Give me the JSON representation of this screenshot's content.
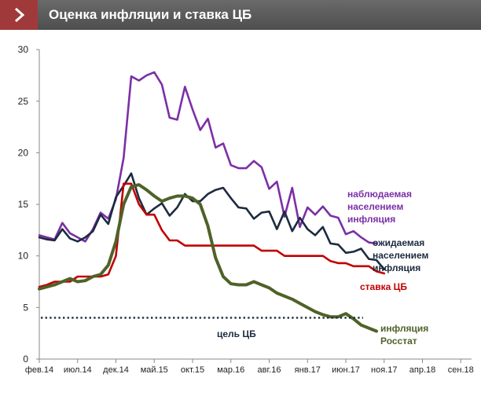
{
  "header": {
    "title": "Оценка инфляции и ставка ЦБ"
  },
  "colors": {
    "observed": "#7b2fa6",
    "expected": "#1c2b3f",
    "rate": "#c00000",
    "rosstat": "#4f6228",
    "target": "#1c2b3f",
    "header_tab": "#a03a3a"
  },
  "chart_data": {
    "type": "line",
    "x_start": "фев.14",
    "x_step_months": 1,
    "x_ticks": [
      "фев.14",
      "июл.14",
      "дек.14",
      "май.15",
      "окт.15",
      "мар.16",
      "авг.16",
      "янв.17",
      "июн.17",
      "ноя.17",
      "апр.18",
      "сен.18"
    ],
    "y_ticks": [
      "0",
      "5",
      "10",
      "15",
      "20",
      "25",
      "30"
    ],
    "ylim": [
      0,
      30
    ],
    "grid": false,
    "series": [
      {
        "name": "наблюдаемая населением инфляция",
        "values": [
          12,
          11.8,
          11.6,
          13.2,
          12.2,
          11.8,
          11.4,
          12.6,
          14.2,
          13.6,
          15.5,
          19.5,
          27.4,
          27.0,
          27.5,
          27.8,
          26.6,
          23.4,
          23.2,
          26.4,
          24.2,
          22.2,
          23.3,
          20.5,
          20.9,
          18.8,
          18.5,
          18.5,
          19.2,
          18.6,
          16.5,
          17.2,
          13.8,
          16.6,
          12.8,
          14.7,
          14.0,
          14.8,
          13.9,
          13.7,
          12.1,
          12.4,
          11.8,
          11.3,
          11.2
        ]
      },
      {
        "name": "ожидаемая населением инфляция",
        "values": [
          11.8,
          11.6,
          11.5,
          12.6,
          11.7,
          11.4,
          11.8,
          12.4,
          14.0,
          13.1,
          15.7,
          16.8,
          18.0,
          15.6,
          14.0,
          14.6,
          15.1,
          13.9,
          14.7,
          16.0,
          15.3,
          15.3,
          16.0,
          16.4,
          16.6,
          15.6,
          14.7,
          14.6,
          13.6,
          14.2,
          14.3,
          12.6,
          14.3,
          12.4,
          13.7,
          12.6,
          12.0,
          12.8,
          11.2,
          11.1,
          10.3,
          10.4,
          10.7,
          9.7,
          9.6,
          8.7
        ]
      },
      {
        "name": "ставка ЦБ",
        "values": [
          7,
          7.2,
          7.5,
          7.5,
          7.5,
          8,
          8,
          8,
          8,
          8.2,
          10,
          17,
          17,
          15,
          14,
          14,
          12.5,
          11.5,
          11.5,
          11,
          11,
          11,
          11,
          11,
          11,
          11,
          11,
          11,
          11,
          10.5,
          10.5,
          10.5,
          10,
          10,
          10,
          10,
          10,
          10,
          9.5,
          9.3,
          9.3,
          9,
          9,
          9,
          8.5,
          8.3
        ]
      },
      {
        "name": "инфляция Росстат",
        "values": [
          6.8,
          7.0,
          7.2,
          7.5,
          7.8,
          7.5,
          7.6,
          8.0,
          8.2,
          9.1,
          11.4,
          15.0,
          16.7,
          16.9,
          16.4,
          15.8,
          15.3,
          15.6,
          15.8,
          15.8,
          15.6,
          15.0,
          12.9,
          9.8,
          8.0,
          7.3,
          7.2,
          7.2,
          7.5,
          7.2,
          6.9,
          6.4,
          6.1,
          5.8,
          5.4,
          5.0,
          4.6,
          4.3,
          4.1,
          4.1,
          4.4,
          3.9,
          3.3,
          3.0,
          2.7
        ]
      },
      {
        "name": "цель ЦБ",
        "values": [
          4,
          4
        ]
      }
    ],
    "labels": {
      "observed": [
        "наблюдаемая",
        "населением",
        "инфляция"
      ],
      "expected": [
        "ожидаемая",
        "населением",
        "инфляция"
      ],
      "rate": "ставка ЦБ",
      "rosstat": [
        "инфляция",
        "Росстат"
      ],
      "target": "цель ЦБ"
    }
  }
}
